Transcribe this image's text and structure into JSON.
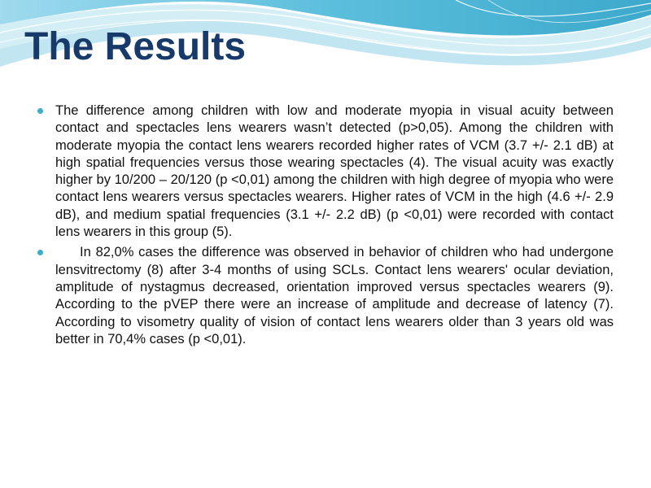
{
  "slide": {
    "title": "The Results",
    "bullets": [
      {
        "text": "The difference among children with low and moderate myopia in visual acuity between contact and spectacles lens wearers wasn’t detected (p>0,05). Among the children with moderate myopia the contact lens wearers recorded higher rates of VCM (3.7 +/- 2.1 dB) at high spatial frequencies versus those wearing spectacles (4). The visual acuity was exactly higher by 10/200 – 20/120 (p <0,01) among the children with high degree of myopia who were contact lens wearers versus spectacles wearers. Higher rates of VCM in the high (4.6 +/- 2.9 dB), and medium spatial frequencies (3.1 +/- 2.2 dB) (p <0,01)  were recorded with contact lens wearers in this group (5)."
      },
      {
        "text": "In 82,0% cases the difference was observed in behavior of children who had undergone  lensvitrectomy (8) after 3-4 months of using SCLs. Contact lens wearers' ocular deviation, amplitude of nystagmus decreased, orientation improved versus spectacles wearers (9). According to the pVEP there were an increase of amplitude and decrease of latency (7). According to visometry quality of vision of contact lens wearers older than 3 years old was better in 70,4% cases (p <0,01)."
      }
    ]
  },
  "colors": {
    "title": "#173a6b",
    "bullet": "#3aaecb",
    "wave_dark": "#4fb3d3",
    "wave_light": "#bfe6f2",
    "text": "#111111"
  }
}
